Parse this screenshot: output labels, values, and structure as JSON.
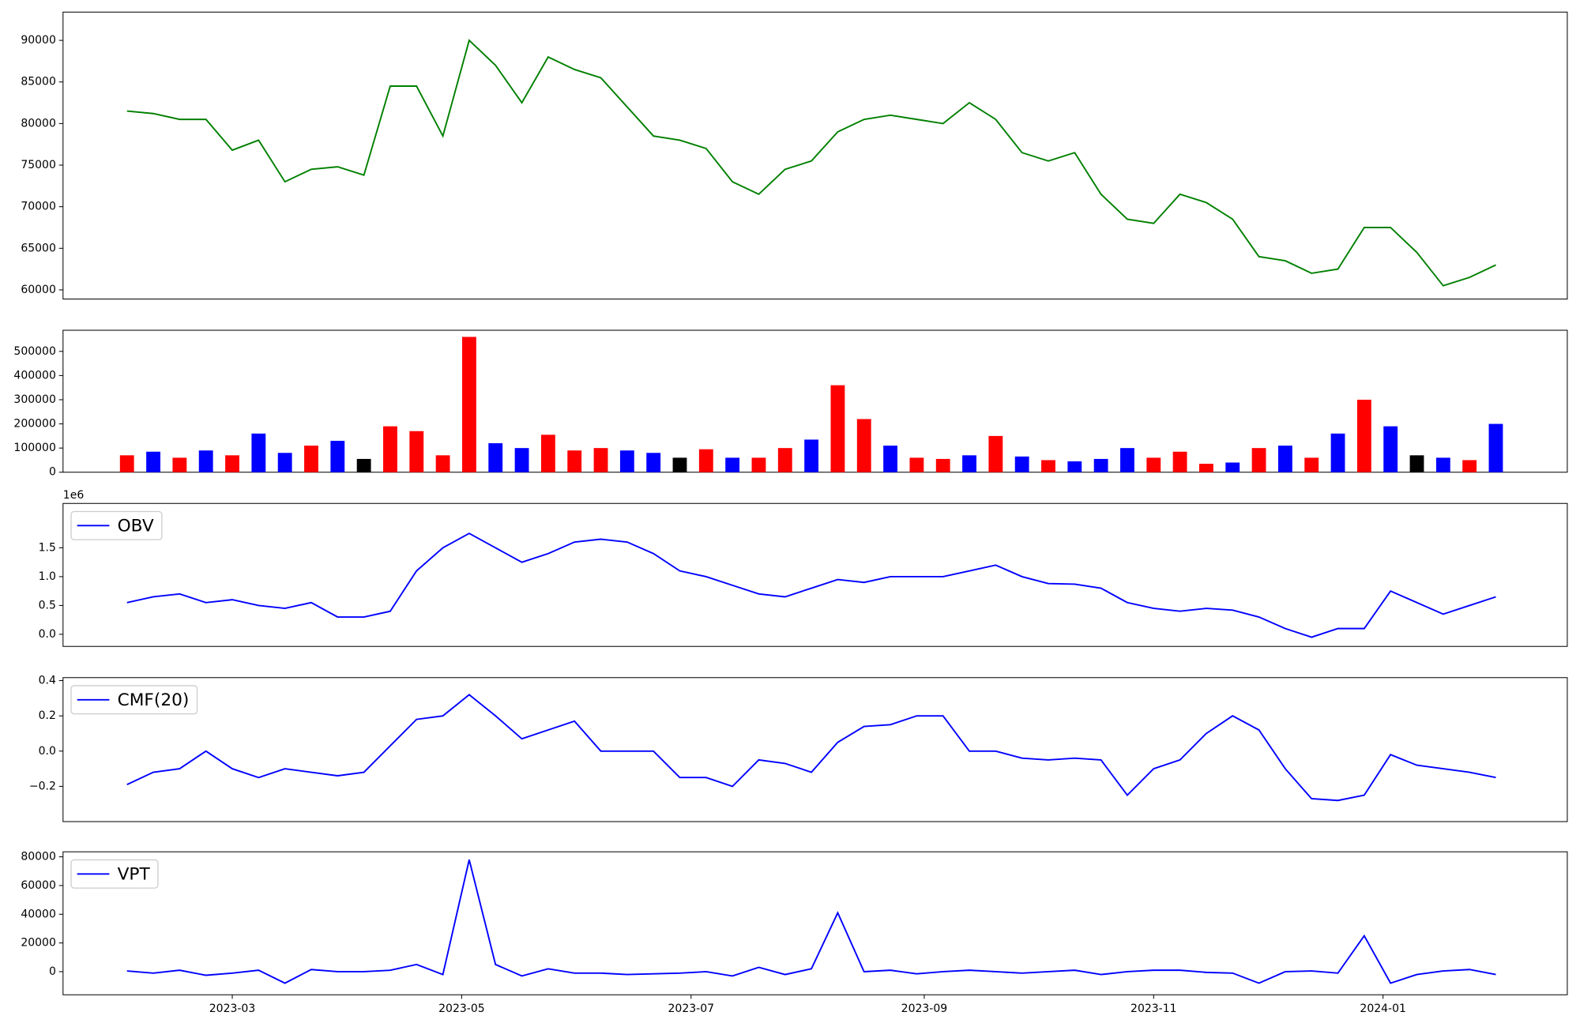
{
  "chart_data": [
    {
      "type": "line",
      "x": [
        "2023-02-01",
        "2023-02-08",
        "2023-02-15",
        "2023-02-22",
        "2023-03-01",
        "2023-03-08",
        "2023-03-15",
        "2023-03-22",
        "2023-03-29",
        "2023-04-05",
        "2023-04-12",
        "2023-04-19",
        "2023-04-26",
        "2023-05-03",
        "2023-05-10",
        "2023-05-17",
        "2023-05-24",
        "2023-05-31",
        "2023-06-07",
        "2023-06-14",
        "2023-06-21",
        "2023-06-28",
        "2023-07-05",
        "2023-07-12",
        "2023-07-19",
        "2023-07-26",
        "2023-08-02",
        "2023-08-09",
        "2023-08-16",
        "2023-08-23",
        "2023-08-30",
        "2023-09-06",
        "2023-09-13",
        "2023-09-20",
        "2023-09-27",
        "2023-10-04",
        "2023-10-11",
        "2023-10-18",
        "2023-10-25",
        "2023-11-01",
        "2023-11-08",
        "2023-11-15",
        "2023-11-22",
        "2023-11-29",
        "2023-12-06",
        "2023-12-13",
        "2023-12-20",
        "2023-12-27",
        "2024-01-03",
        "2024-01-10",
        "2024-01-17",
        "2024-01-24",
        "2024-01-31"
      ],
      "series": [
        {
          "color": "#008000",
          "values": [
            81500,
            81200,
            80500,
            80500,
            76800,
            78000,
            73000,
            74500,
            74800,
            73800,
            84500,
            84500,
            78500,
            90000,
            87000,
            82500,
            88000,
            86500,
            85500,
            82000,
            78500,
            78000,
            77000,
            73000,
            71500,
            74500,
            75500,
            79000,
            80500,
            81000,
            80500,
            80000,
            82500,
            80500,
            76500,
            75500,
            76500,
            71500,
            68500,
            68000,
            71500,
            70500,
            68500,
            64000,
            63500,
            62000,
            62500,
            67500,
            67500,
            64500,
            60500,
            61500,
            63000
          ]
        }
      ],
      "xlim": [
        "2023-01-15",
        "2024-02-19"
      ],
      "ylim": [
        58900,
        93400
      ],
      "yticks": [
        60000,
        65000,
        70000,
        75000,
        80000,
        85000,
        90000
      ]
    },
    {
      "type": "bar",
      "x": [
        "2023-02-01",
        "2023-02-08",
        "2023-02-15",
        "2023-02-22",
        "2023-03-01",
        "2023-03-08",
        "2023-03-15",
        "2023-03-22",
        "2023-03-29",
        "2023-04-05",
        "2023-04-12",
        "2023-04-19",
        "2023-04-26",
        "2023-05-03",
        "2023-05-10",
        "2023-05-17",
        "2023-05-24",
        "2023-05-31",
        "2023-06-07",
        "2023-06-14",
        "2023-06-21",
        "2023-06-28",
        "2023-07-05",
        "2023-07-12",
        "2023-07-19",
        "2023-07-26",
        "2023-08-02",
        "2023-08-09",
        "2023-08-16",
        "2023-08-23",
        "2023-08-30",
        "2023-09-06",
        "2023-09-13",
        "2023-09-20",
        "2023-09-27",
        "2023-10-04",
        "2023-10-11",
        "2023-10-18",
        "2023-10-25",
        "2023-11-01",
        "2023-11-08",
        "2023-11-15",
        "2023-11-22",
        "2023-11-29",
        "2023-12-06",
        "2023-12-13",
        "2023-12-20",
        "2023-12-27",
        "2024-01-03",
        "2024-01-10",
        "2024-01-17",
        "2024-01-24",
        "2024-01-31"
      ],
      "values": [
        70000,
        85000,
        60000,
        90000,
        70000,
        160000,
        80000,
        110000,
        130000,
        55000,
        190000,
        170000,
        70000,
        560000,
        120000,
        100000,
        155000,
        90000,
        100000,
        90000,
        80000,
        60000,
        95000,
        60000,
        60000,
        100000,
        135000,
        360000,
        220000,
        110000,
        60000,
        55000,
        70000,
        150000,
        65000,
        50000,
        45000,
        55000,
        100000,
        60000,
        85000,
        35000,
        40000,
        100000,
        110000,
        60000,
        160000,
        300000,
        190000,
        70000,
        60000,
        50000,
        200000
      ],
      "colors": [
        "red",
        "blue",
        "red",
        "blue",
        "red",
        "blue",
        "blue",
        "red",
        "blue",
        "black",
        "red",
        "red",
        "red",
        "red",
        "blue",
        "blue",
        "red",
        "red",
        "red",
        "blue",
        "blue",
        "black",
        "red",
        "blue",
        "red",
        "red",
        "blue",
        "red",
        "red",
        "blue",
        "red",
        "red",
        "blue",
        "red",
        "blue",
        "red",
        "blue",
        "blue",
        "blue",
        "red",
        "red",
        "red",
        "blue",
        "red",
        "blue",
        "red",
        "blue",
        "red",
        "blue",
        "black",
        "blue",
        "red",
        "blue"
      ],
      "xlim": [
        "2023-01-15",
        "2024-02-19"
      ],
      "ylim": [
        0,
        587500
      ],
      "yticks": [
        0,
        100000,
        200000,
        300000,
        400000,
        500000
      ]
    },
    {
      "type": "line",
      "offset_label": "1e6",
      "legend": "upper left",
      "x": [
        "2023-02-01",
        "2023-02-08",
        "2023-02-15",
        "2023-02-22",
        "2023-03-01",
        "2023-03-08",
        "2023-03-15",
        "2023-03-22",
        "2023-03-29",
        "2023-04-05",
        "2023-04-12",
        "2023-04-19",
        "2023-04-26",
        "2023-05-03",
        "2023-05-10",
        "2023-05-17",
        "2023-05-24",
        "2023-05-31",
        "2023-06-07",
        "2023-06-14",
        "2023-06-21",
        "2023-06-28",
        "2023-07-05",
        "2023-07-12",
        "2023-07-19",
        "2023-07-26",
        "2023-08-02",
        "2023-08-09",
        "2023-08-16",
        "2023-08-23",
        "2023-08-30",
        "2023-09-06",
        "2023-09-13",
        "2023-09-20",
        "2023-09-27",
        "2023-10-04",
        "2023-10-11",
        "2023-10-18",
        "2023-10-25",
        "2023-11-01",
        "2023-11-08",
        "2023-11-15",
        "2023-11-22",
        "2023-11-29",
        "2023-12-06",
        "2023-12-13",
        "2023-12-20",
        "2023-12-27",
        "2024-01-03",
        "2024-01-10",
        "2024-01-17",
        "2024-01-24",
        "2024-01-31"
      ],
      "series": [
        {
          "name": "OBV",
          "color": "#0000ff",
          "values": [
            0.55,
            0.65,
            0.7,
            0.55,
            0.6,
            0.5,
            0.45,
            0.55,
            0.3,
            0.3,
            0.4,
            1.1,
            1.5,
            1.75,
            1.5,
            1.25,
            1.4,
            1.6,
            1.65,
            1.6,
            1.4,
            1.1,
            1.0,
            0.85,
            0.7,
            0.65,
            0.8,
            0.95,
            0.9,
            1.0,
            1.0,
            1.0,
            1.1,
            1.2,
            1.0,
            0.88,
            0.87,
            0.8,
            0.55,
            0.45,
            0.4,
            0.45,
            0.42,
            0.3,
            0.1,
            -0.05,
            0.1,
            0.1,
            0.75,
            0.55,
            0.35,
            0.5,
            0.65
          ]
        }
      ],
      "xlim": [
        "2023-01-15",
        "2024-02-19"
      ],
      "ylim": [
        -0.21,
        2.27
      ],
      "yticks": [
        {
          "value": 0,
          "label": "0.0"
        },
        0.5,
        {
          "value": 1,
          "label": "1.0"
        },
        1.5
      ]
    },
    {
      "type": "line",
      "legend": "upper left",
      "x": [
        "2023-02-01",
        "2023-02-08",
        "2023-02-15",
        "2023-02-22",
        "2023-03-01",
        "2023-03-08",
        "2023-03-15",
        "2023-03-22",
        "2023-03-29",
        "2023-04-05",
        "2023-04-12",
        "2023-04-19",
        "2023-04-26",
        "2023-05-03",
        "2023-05-10",
        "2023-05-17",
        "2023-05-24",
        "2023-05-31",
        "2023-06-07",
        "2023-06-14",
        "2023-06-21",
        "2023-06-28",
        "2023-07-05",
        "2023-07-12",
        "2023-07-19",
        "2023-07-26",
        "2023-08-02",
        "2023-08-09",
        "2023-08-16",
        "2023-08-23",
        "2023-08-30",
        "2023-09-06",
        "2023-09-13",
        "2023-09-20",
        "2023-09-27",
        "2023-10-04",
        "2023-10-11",
        "2023-10-18",
        "2023-10-25",
        "2023-11-01",
        "2023-11-08",
        "2023-11-15",
        "2023-11-22",
        "2023-11-29",
        "2023-12-06",
        "2023-12-13",
        "2023-12-20",
        "2023-12-27",
        "2024-01-03",
        "2024-01-10",
        "2024-01-17",
        "2024-01-24",
        "2024-01-31"
      ],
      "series": [
        {
          "name": "CMF(20)",
          "color": "#0000ff",
          "values": [
            -0.19,
            -0.12,
            -0.1,
            0.0,
            -0.1,
            -0.15,
            -0.1,
            -0.12,
            -0.14,
            -0.12,
            0.03,
            0.18,
            0.2,
            0.32,
            0.2,
            0.07,
            0.12,
            0.17,
            0.0,
            0.0,
            0.0,
            -0.15,
            -0.15,
            -0.2,
            -0.05,
            -0.07,
            -0.12,
            0.05,
            0.14,
            0.15,
            0.2,
            0.2,
            0.0,
            0.0,
            -0.04,
            -0.05,
            -0.04,
            -0.05,
            -0.25,
            -0.1,
            -0.05,
            0.1,
            0.2,
            0.12,
            -0.1,
            -0.27,
            -0.28,
            -0.25,
            -0.02,
            -0.08,
            -0.1,
            -0.12,
            -0.15
          ]
        }
      ],
      "xlim": [
        "2023-01-15",
        "2024-02-19"
      ],
      "ylim": [
        -0.4,
        0.417
      ],
      "yticks": [
        {
          "value": -0.2,
          "label": "−0.2"
        },
        {
          "value": 0,
          "label": "0.0"
        },
        0.2,
        0.4
      ]
    },
    {
      "type": "line",
      "legend": "upper left",
      "x": [
        "2023-02-01",
        "2023-02-08",
        "2023-02-15",
        "2023-02-22",
        "2023-03-01",
        "2023-03-08",
        "2023-03-15",
        "2023-03-22",
        "2023-03-29",
        "2023-04-05",
        "2023-04-12",
        "2023-04-19",
        "2023-04-26",
        "2023-05-03",
        "2023-05-10",
        "2023-05-17",
        "2023-05-24",
        "2023-05-31",
        "2023-06-07",
        "2023-06-14",
        "2023-06-21",
        "2023-06-28",
        "2023-07-05",
        "2023-07-12",
        "2023-07-19",
        "2023-07-26",
        "2023-08-02",
        "2023-08-09",
        "2023-08-16",
        "2023-08-23",
        "2023-08-30",
        "2023-09-06",
        "2023-09-13",
        "2023-09-20",
        "2023-09-27",
        "2023-10-04",
        "2023-10-11",
        "2023-10-18",
        "2023-10-25",
        "2023-11-01",
        "2023-11-08",
        "2023-11-15",
        "2023-11-22",
        "2023-11-29",
        "2023-12-06",
        "2023-12-13",
        "2023-12-20",
        "2023-12-27",
        "2024-01-03",
        "2024-01-10",
        "2024-01-17",
        "2024-01-24",
        "2024-01-31"
      ],
      "series": [
        {
          "name": "VPT",
          "color": "#0000ff",
          "values": [
            500,
            -1000,
            1000,
            -2500,
            -1000,
            1000,
            -8000,
            1500,
            0,
            0,
            1000,
            5000,
            -2000,
            78000,
            5000,
            -3000,
            2000,
            -1000,
            -1000,
            -2000,
            -1500,
            -1000,
            0,
            -3000,
            3000,
            -2000,
            2000,
            41000,
            0,
            1000,
            -1500,
            0,
            1000,
            0,
            -1000,
            0,
            1000,
            -2000,
            0,
            1000,
            1000,
            -500,
            -1000,
            -8000,
            0,
            500,
            -1000,
            25000,
            -8000,
            -2000,
            500,
            1500,
            -2000
          ]
        }
      ],
      "xlim": [
        "2023-01-15",
        "2024-02-19"
      ],
      "ylim": [
        -16100,
        83500
      ],
      "yticks": [
        0,
        20000,
        40000,
        60000,
        80000
      ],
      "xticks": [
        {
          "value": "2023-03-01",
          "label": "2023-03"
        },
        {
          "value": "2023-05-01",
          "label": "2023-05"
        },
        {
          "value": "2023-07-01",
          "label": "2023-07"
        },
        {
          "value": "2023-09-01",
          "label": "2023-09"
        },
        {
          "value": "2023-11-01",
          "label": "2023-11"
        },
        {
          "value": "2024-01-01",
          "label": "2024-01"
        }
      ]
    }
  ]
}
